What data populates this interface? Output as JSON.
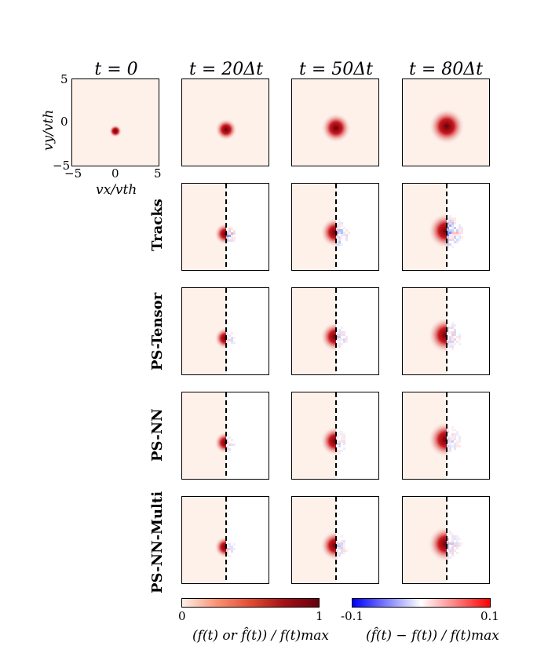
{
  "columns": [
    {
      "title": "t = 0"
    },
    {
      "title": "t = 20Δt"
    },
    {
      "title": "t = 50Δt"
    },
    {
      "title": "t = 80Δt"
    }
  ],
  "rows": [
    {
      "label": ""
    },
    {
      "label": "Tracks"
    },
    {
      "label": "PS-Tensor"
    },
    {
      "label": "PS-NN"
    },
    {
      "label": "PS-NN-Multi"
    }
  ],
  "axes": {
    "xlabel": "vx/vth",
    "ylabel": "vy/vth",
    "xticks": [
      "−5",
      "0",
      "5"
    ],
    "yticks": [
      "5",
      "0",
      "−5"
    ]
  },
  "colorbars": [
    {
      "min_label": "0",
      "max_label": "1",
      "title": "(f(t) or f̂(t)) / f(t)max",
      "colors": [
        "#fdf1ea",
        "#e34a33",
        "#67000d"
      ]
    },
    {
      "min_label": "-0.1",
      "max_label": "0.1",
      "title": "(f̂(t) − f(t)) / f(t)max",
      "colors": [
        "#0000ff",
        "#ffffff",
        "#ff0000"
      ]
    }
  ],
  "colors": {
    "background": "#fdf1ea",
    "peak": "#a50f15",
    "diverging_pos": "#ff0000",
    "diverging_neg": "#0000ff"
  }
}
